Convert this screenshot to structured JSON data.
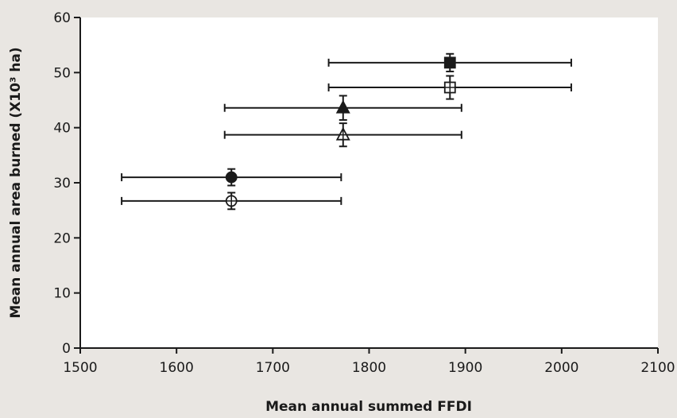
{
  "chart_data": {
    "type": "scatter",
    "title": "",
    "xlabel": "Mean annual summed FFDI",
    "ylabel": "Mean annual area burned (X10³ ha)",
    "xlim": [
      1500,
      2100
    ],
    "ylim": [
      0,
      60
    ],
    "x_ticks": [
      "1500",
      "1600",
      "1700",
      "1800",
      "1900",
      "2000",
      "2100"
    ],
    "y_ticks": [
      "0",
      "10",
      "20",
      "30",
      "40",
      "50",
      "60"
    ],
    "grid": false,
    "legend": "none",
    "series": [
      {
        "marker": "filled-square",
        "x": 1884,
        "y": 51.8,
        "x_err": [
          1758,
          2010
        ],
        "y_err": [
          50.2,
          53.4
        ]
      },
      {
        "marker": "open-square",
        "x": 1884,
        "y": 47.3,
        "x_err": [
          1758,
          2010
        ],
        "y_err": [
          45.2,
          49.4
        ]
      },
      {
        "marker": "filled-triangle",
        "x": 1773,
        "y": 43.6,
        "x_err": [
          1650,
          1896
        ],
        "y_err": [
          41.4,
          45.8
        ]
      },
      {
        "marker": "open-triangle",
        "x": 1773,
        "y": 38.7,
        "x_err": [
          1650,
          1896
        ],
        "y_err": [
          36.6,
          40.8
        ]
      },
      {
        "marker": "filled-circle",
        "x": 1657,
        "y": 31.0,
        "x_err": [
          1543,
          1771
        ],
        "y_err": [
          29.5,
          32.5
        ]
      },
      {
        "marker": "open-circle",
        "x": 1657,
        "y": 26.7,
        "x_err": [
          1543,
          1771
        ],
        "y_err": [
          25.2,
          28.2
        ]
      }
    ],
    "colors": {
      "background": "#e9e6e2",
      "plot_area": "#ffffff",
      "ink": "#1a1a1a"
    }
  }
}
